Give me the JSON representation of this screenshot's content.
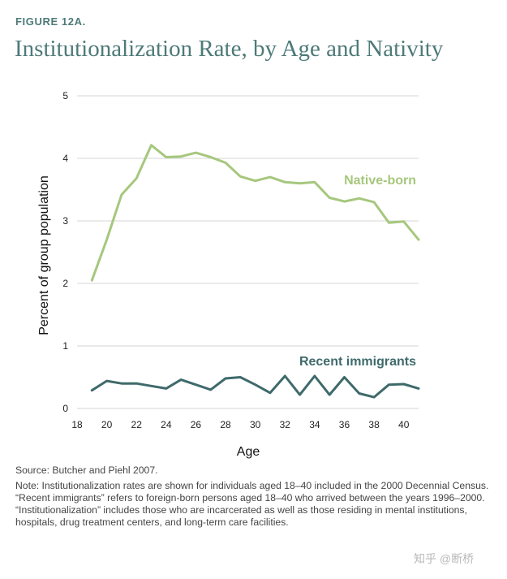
{
  "figure_label": "FIGURE 12A.",
  "title": "Institutionalization Rate, by Age and Nativity",
  "source": "Source: Butcher and Piehl 2007.",
  "note": "Note: Institutionalization rates are shown for individuals aged 18–40 included in the 2000 Decennial Census. “Recent immigrants” refers to foreign-born persons aged 18–40 who arrived between the years 1996–2000. “Institutionalization” includes those who are incarcerated as well as those residing in mental institutions, hospitals, drug treatment centers, and long-term care facilities.",
  "watermark": "知乎 @断桥",
  "colors": {
    "native": "#a6c77d",
    "immigrant": "#3f6a6b",
    "grid": "#d4d4d4",
    "title": "#4d7a78"
  },
  "chart_data": {
    "type": "line",
    "xlabel": "Age",
    "ylabel": "Percent of group population",
    "xlim": [
      18,
      41
    ],
    "ylim": [
      0,
      5
    ],
    "x_ticks": [
      18,
      20,
      22,
      24,
      26,
      28,
      30,
      32,
      34,
      36,
      38,
      40
    ],
    "y_ticks": [
      0,
      1,
      2,
      3,
      4,
      5
    ],
    "grid": true,
    "x": [
      19,
      20,
      21,
      22,
      23,
      24,
      25,
      26,
      27,
      28,
      29,
      30,
      31,
      32,
      33,
      34,
      35,
      36,
      37,
      38,
      39,
      40,
      41
    ],
    "series": [
      {
        "name": "Native-born",
        "values": [
          2.05,
          2.7,
          3.42,
          3.68,
          4.21,
          4.02,
          4.03,
          4.09,
          4.02,
          3.93,
          3.71,
          3.64,
          3.7,
          3.62,
          3.6,
          3.62,
          3.37,
          3.31,
          3.36,
          3.3,
          2.97,
          2.99,
          2.7
        ]
      },
      {
        "name": "Recent immigrants",
        "values": [
          0.29,
          0.44,
          0.4,
          0.4,
          0.36,
          0.32,
          0.46,
          0.38,
          0.3,
          0.48,
          0.5,
          0.38,
          0.25,
          0.52,
          0.22,
          0.52,
          0.22,
          0.5,
          0.24,
          0.18,
          0.38,
          0.39,
          0.32
        ]
      }
    ]
  }
}
